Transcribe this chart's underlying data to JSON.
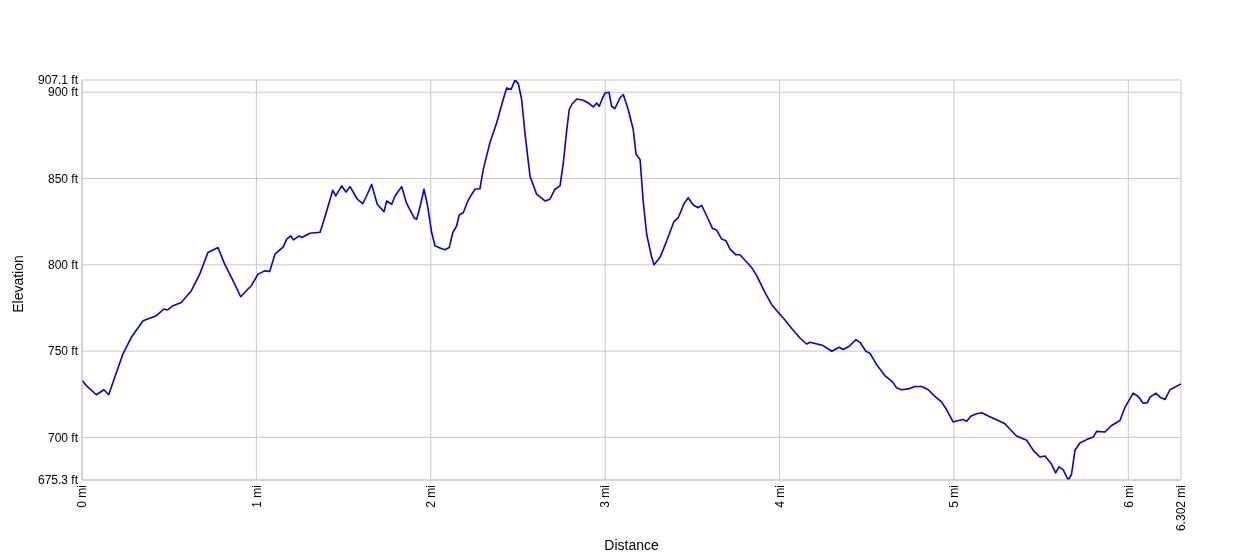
{
  "chart_data": {
    "type": "line",
    "xlabel": "Distance",
    "ylabel": "Elevation",
    "xlim": [
      0,
      6.302
    ],
    "xticks": [
      {
        "value": 0,
        "label": "0 mi"
      },
      {
        "value": 1,
        "label": "1 mi"
      },
      {
        "value": 2,
        "label": "2 mi"
      },
      {
        "value": 3,
        "label": "3 mi"
      },
      {
        "value": 4,
        "label": "4 mi"
      },
      {
        "value": 5,
        "label": "5 mi"
      },
      {
        "value": 6,
        "label": "6 mi"
      },
      {
        "value": 6.302,
        "label": "6.302 mi"
      }
    ],
    "ylim": [
      675.3,
      907.1
    ],
    "yticks": [
      {
        "value": 675.3,
        "label": "675.3 ft"
      },
      {
        "value": 700,
        "label": "700 ft"
      },
      {
        "value": 750,
        "label": "750 ft"
      },
      {
        "value": 800,
        "label": "800 ft"
      },
      {
        "value": 850,
        "label": "850 ft"
      },
      {
        "value": 900,
        "label": "900 ft"
      },
      {
        "value": 907.1,
        "label": "907.1 ft"
      }
    ],
    "grid": true,
    "marker": "none",
    "line_style": "solid",
    "color": "#0000e0",
    "x": [
      0,
      0.025,
      0.082,
      0.126,
      0.153,
      0.178,
      0.235,
      0.283,
      0.35,
      0.426,
      0.47,
      0.489,
      0.522,
      0.569,
      0.627,
      0.675,
      0.722,
      0.78,
      0.818,
      0.866,
      0.91,
      0.952,
      0.971,
      1.009,
      1.048,
      1.076,
      1.107,
      1.154,
      1.174,
      1.197,
      1.212,
      1.246,
      1.26,
      1.288,
      1.307,
      1.365,
      1.38,
      1.403,
      1.438,
      1.455,
      1.489,
      1.514,
      1.537,
      1.579,
      1.61,
      1.636,
      1.661,
      1.693,
      1.732,
      1.747,
      1.776,
      1.795,
      1.833,
      1.862,
      1.904,
      1.919,
      1.942,
      1.961,
      1.98,
      2.005,
      2.024,
      2.053,
      2.081,
      2.106,
      2.126,
      2.148,
      2.163,
      2.186,
      2.215,
      2.253,
      2.282,
      2.301,
      2.339,
      2.378,
      2.407,
      2.435,
      2.46,
      2.483,
      2.502,
      2.521,
      2.54,
      2.569,
      2.607,
      2.655,
      2.683,
      2.712,
      2.741,
      2.76,
      2.779,
      2.794,
      2.808,
      2.837,
      2.874,
      2.903,
      2.932,
      2.951,
      2.966,
      2.98,
      2.999,
      3.022,
      3.037,
      3.056,
      3.085,
      3.104,
      3.132,
      3.161,
      3.177,
      3.2,
      3.218,
      3.238,
      3.267,
      3.28,
      3.314,
      3.353,
      3.394,
      3.419,
      3.452,
      3.476,
      3.505,
      3.534,
      3.553,
      3.585,
      3.616,
      3.639,
      3.668,
      3.693,
      3.716,
      3.75,
      3.773,
      3.84,
      3.869,
      3.916,
      3.955,
      3.993,
      4.031,
      4.071,
      4.117,
      4.155,
      4.174,
      4.25,
      4.299,
      4.342,
      4.365,
      4.4,
      4.438,
      4.461,
      4.495,
      4.518,
      4.56,
      4.604,
      4.649,
      4.671,
      4.7,
      4.738,
      4.776,
      4.815,
      4.853,
      4.891,
      4.93,
      4.958,
      4.996,
      5.025,
      5.053,
      5.073,
      5.096,
      5.13,
      5.159,
      5.206,
      5.254,
      5.292,
      5.359,
      5.417,
      5.455,
      5.493,
      5.522,
      5.56,
      5.583,
      5.602,
      5.626,
      5.655,
      5.674,
      5.694,
      5.722,
      5.761,
      5.799,
      5.818,
      5.866,
      5.904,
      5.952,
      5.981,
      6.028,
      6.057,
      6.085,
      6.108,
      6.124,
      6.159,
      6.182,
      6.21,
      6.239,
      6.302
    ],
    "values": [
      733,
      730,
      724.7,
      727.6,
      724.7,
      732,
      748.4,
      758,
      767.6,
      770.5,
      774.4,
      773.8,
      776.3,
      778.2,
      785,
      794.6,
      807.1,
      810,
      800.4,
      790.8,
      781.5,
      786,
      787.9,
      794.6,
      796.5,
      796.1,
      806.2,
      810.4,
      814.9,
      816.8,
      814.5,
      816.8,
      815.8,
      817.3,
      818.3,
      818.9,
      823.5,
      831.2,
      843.2,
      839.9,
      845.7,
      842.2,
      845.3,
      838,
      835.4,
      840.9,
      846.6,
      835.1,
      830.8,
      837,
      835.1,
      839.9,
      845.3,
      835.4,
      827.3,
      826.4,
      835.1,
      843.8,
      835.1,
      818.7,
      811,
      809.7,
      808.7,
      810,
      818.7,
      822.5,
      828.9,
      830.2,
      837.6,
      843.8,
      844.1,
      855.3,
      870.7,
      882.3,
      892.9,
      902.5,
      901.6,
      907.1,
      905,
      895.8,
      876.5,
      851.4,
      840.9,
      837,
      838,
      843.8,
      845.7,
      859.1,
      877.5,
      890,
      892.9,
      896.1,
      895.4,
      893.8,
      891.5,
      893.8,
      891.9,
      895.4,
      899.6,
      900,
      891.9,
      890.6,
      896.7,
      898.7,
      890,
      878.4,
      864,
      861.1,
      837,
      817.7,
      804.2,
      800,
      804.2,
      813.9,
      825,
      827.3,
      835.4,
      838.9,
      834.7,
      833.1,
      834.5,
      827.7,
      821,
      820.2,
      814.9,
      813.9,
      809.1,
      805.8,
      805.8,
      798.4,
      793.7,
      784,
      776.9,
      772.4,
      768,
      763,
      757.6,
      754.1,
      755.1,
      753.2,
      749.9,
      752.2,
      750.9,
      752.8,
      756.7,
      755.1,
      749.9,
      748.8,
      741.6,
      735.8,
      732,
      728.7,
      727.6,
      728.1,
      729.5,
      729.5,
      727.6,
      723.7,
      720.4,
      716,
      708.9,
      709.8,
      710.4,
      709.3,
      712.3,
      713.7,
      714.3,
      712,
      709.8,
      707.9,
      700.8,
      698.3,
      692.5,
      688.6,
      689.2,
      684.4,
      679.4,
      682.9,
      681.3,
      675.3,
      678.5,
      692.5,
      696.7,
      698.7,
      700.2,
      703.5,
      703.1,
      706.9,
      709.8,
      717.5,
      725.6,
      723.7,
      719.8,
      720,
      723.3,
      725.6,
      723.3,
      722,
      727.6,
      731
    ]
  }
}
